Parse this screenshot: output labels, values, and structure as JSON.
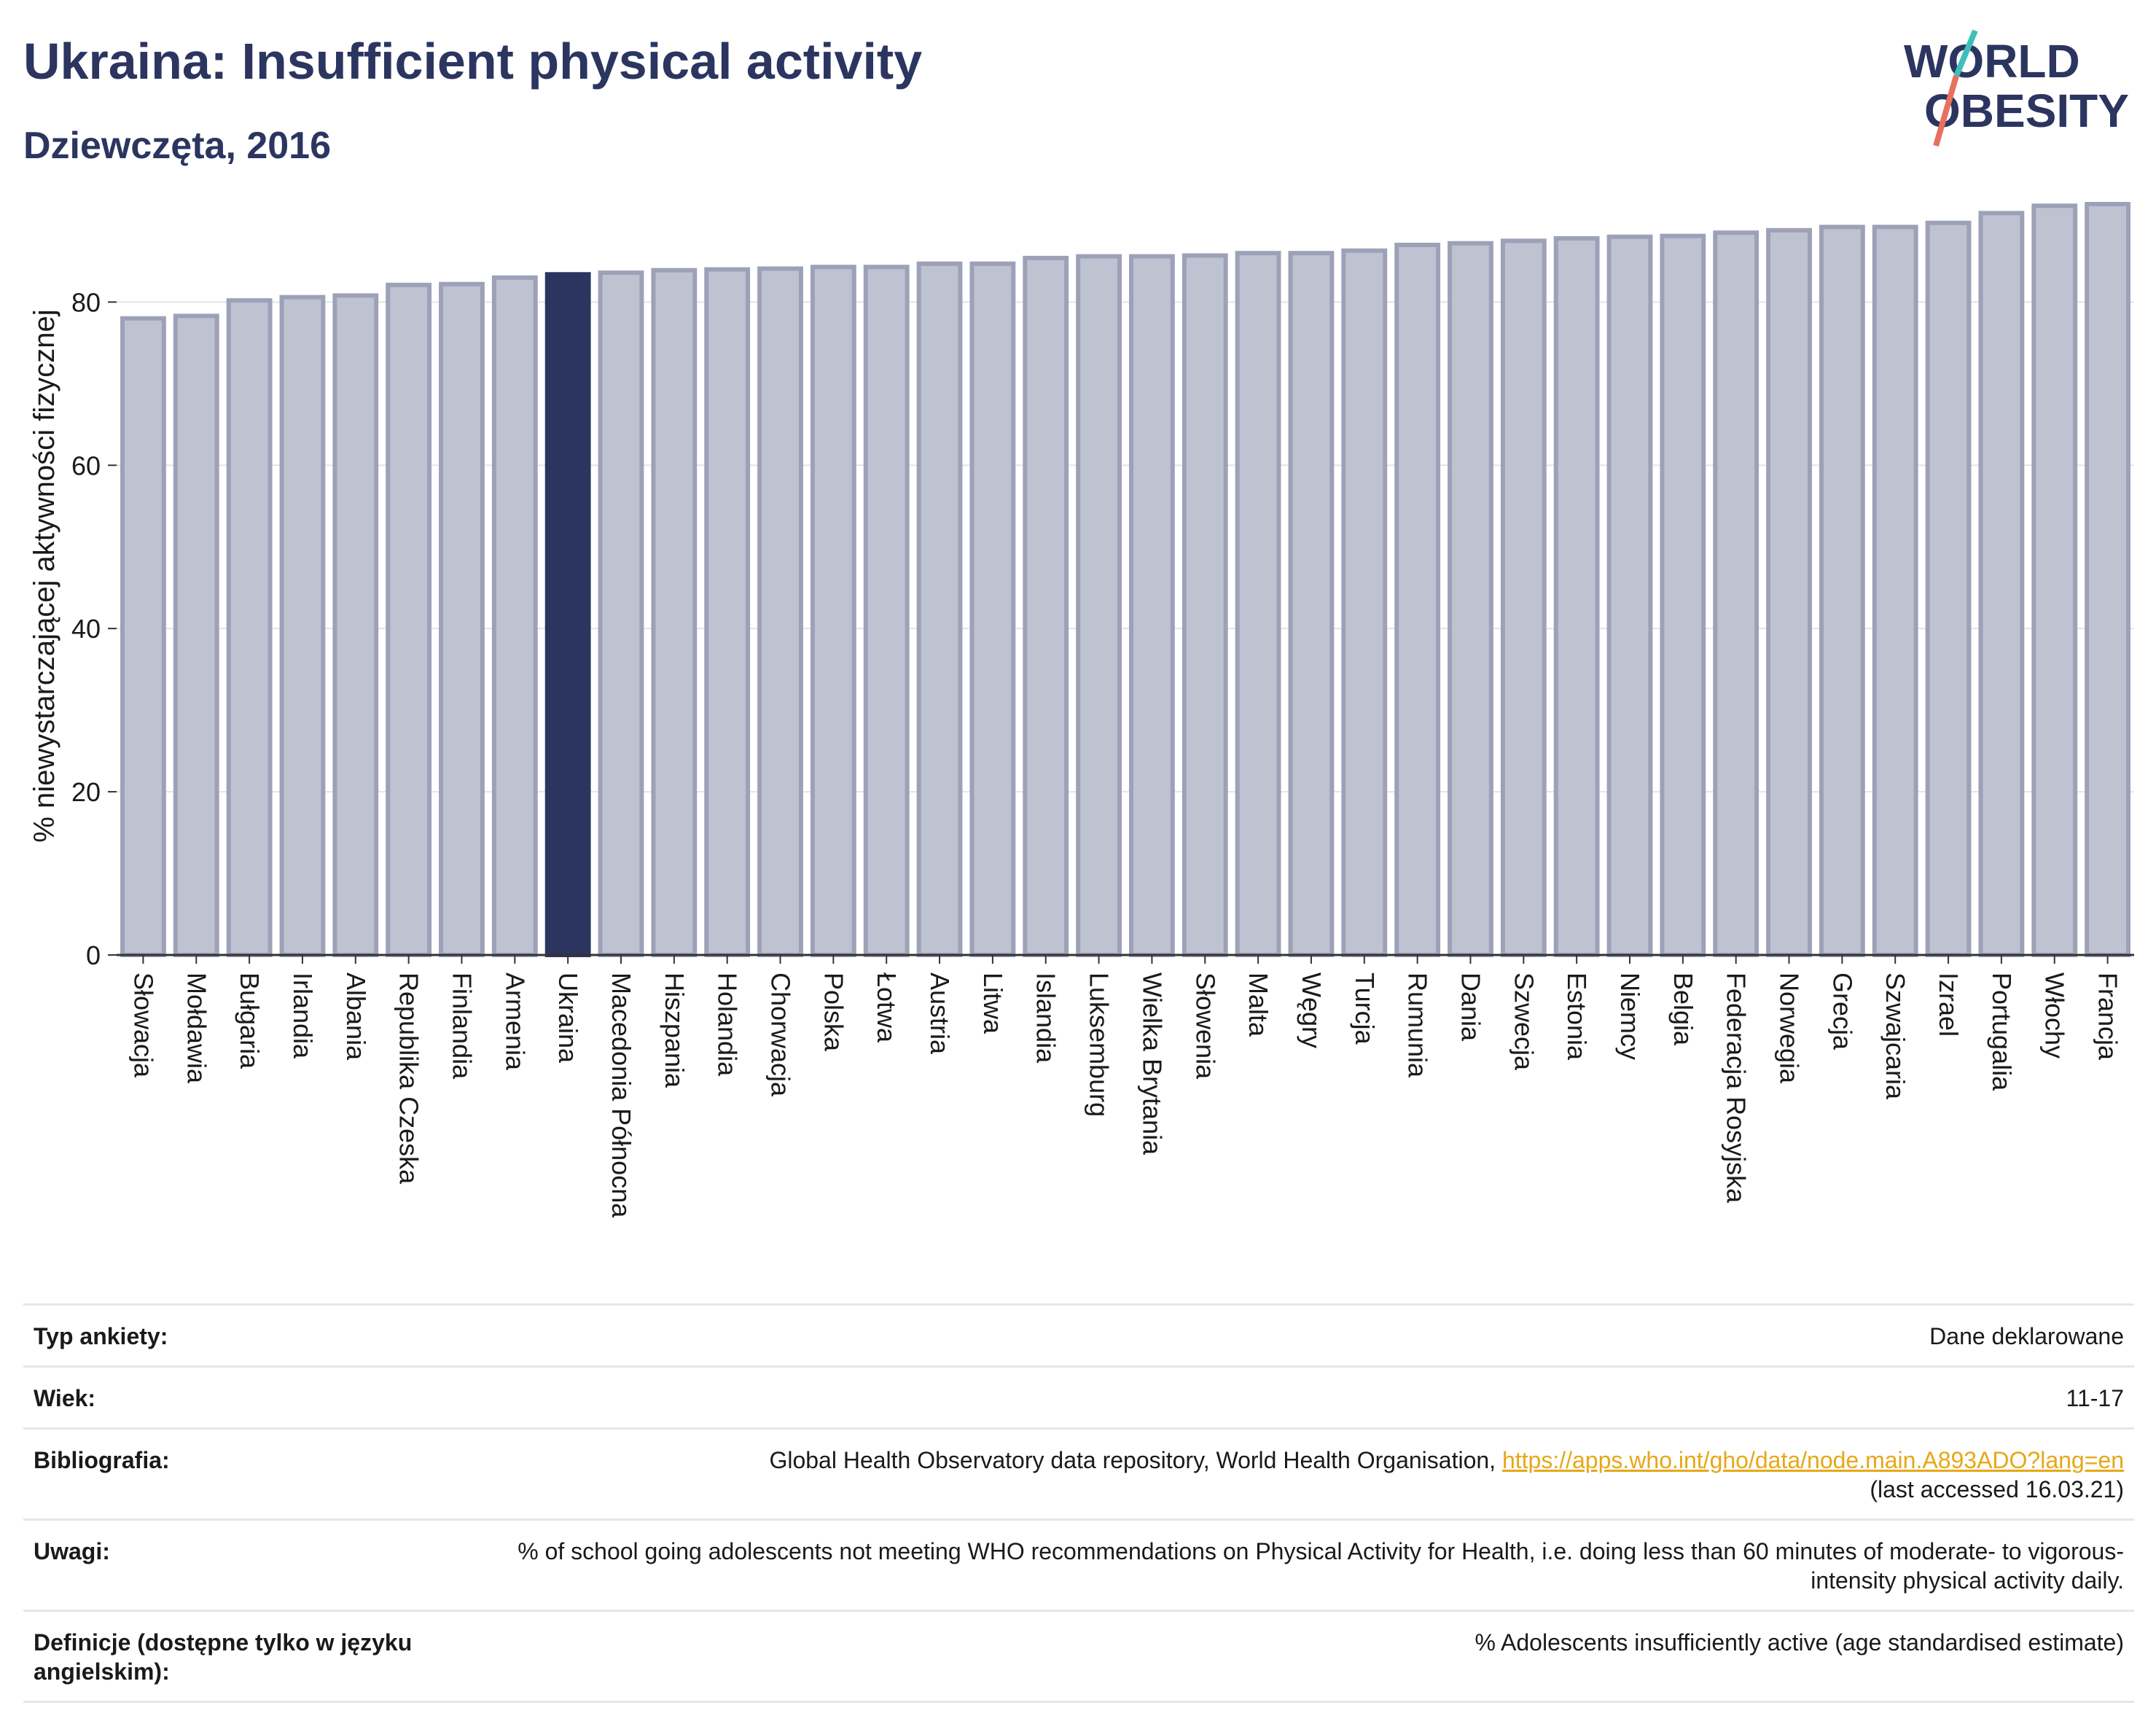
{
  "header": {
    "title": "Ukraina: Insufficient physical activity",
    "subtitle": "Dziewczęta, 2016"
  },
  "logo": {
    "line1": "WORLD",
    "line2": "OBESITY"
  },
  "colors": {
    "highlight": "#2b3560",
    "bar": "#bfc2d0",
    "bar_border": "#9da1b8",
    "accent_teal": "#3fbfb9",
    "accent_coral": "#e8705f",
    "link": "#e6a817"
  },
  "chart_data": {
    "type": "bar",
    "title": "Ukraina: Insufficient physical activity",
    "subtitle": "Dziewczęta, 2016",
    "ylabel": "% niewystarczającej aktywności fizycznej",
    "xlabel": "",
    "ylim": [
      0,
      92
    ],
    "yticks": [
      0,
      20,
      40,
      60,
      80
    ],
    "grid": true,
    "highlight": "Ukraina",
    "categories": [
      "Słowacja",
      "Mołdawia",
      "Bułgaria",
      "Irlandia",
      "Albania",
      "Republika Czeska",
      "Finlandia",
      "Armenia",
      "Ukraina",
      "Macedonia Północna",
      "Hiszpania",
      "Holandia",
      "Chorwacja",
      "Polska",
      "Łotwa",
      "Austria",
      "Litwa",
      "Islandia",
      "Luksemburg",
      "Wielka Brytania",
      "Słowenia",
      "Malta",
      "Węgry",
      "Turcja",
      "Rumunia",
      "Dania",
      "Szwecja",
      "Estonia",
      "Niemcy",
      "Belgia",
      "Federacja Rosyjska",
      "Norwegia",
      "Grecja",
      "Szwajcaria",
      "Izrael",
      "Portugalia",
      "Włochy",
      "Francja"
    ],
    "values": [
      78.0,
      78.3,
      80.2,
      80.6,
      80.8,
      82.1,
      82.2,
      83.0,
      83.4,
      83.6,
      83.9,
      84.0,
      84.1,
      84.3,
      84.3,
      84.7,
      84.7,
      85.4,
      85.6,
      85.6,
      85.7,
      86.0,
      86.0,
      86.3,
      87.0,
      87.2,
      87.5,
      87.8,
      88.0,
      88.1,
      88.5,
      88.8,
      89.2,
      89.2,
      89.7,
      90.9,
      91.8,
      92.0
    ]
  },
  "meta": {
    "rows": [
      {
        "key": "Typ ankiety:",
        "value": "Dane deklarowane"
      },
      {
        "key": "Wiek:",
        "value": "11-17"
      },
      {
        "key": "Bibliografia:",
        "value": "Global Health Observatory data repository, World Health Organisation, ",
        "link": "https://apps.who.int/gho/data/node.main.A893ADO?lang=en",
        "value2": "(last accessed 16.03.21)"
      },
      {
        "key": "Uwagi:",
        "value": "% of school going adolescents not meeting WHO recommendations on Physical Activity for Health, i.e. doing less than 60 minutes of moderate- to vigorous-intensity physical activity daily."
      },
      {
        "key": "Definicje (dostępne tylko w języku angielskim):",
        "value": "% Adolescents insufficiently active (age standardised estimate)"
      }
    ]
  }
}
